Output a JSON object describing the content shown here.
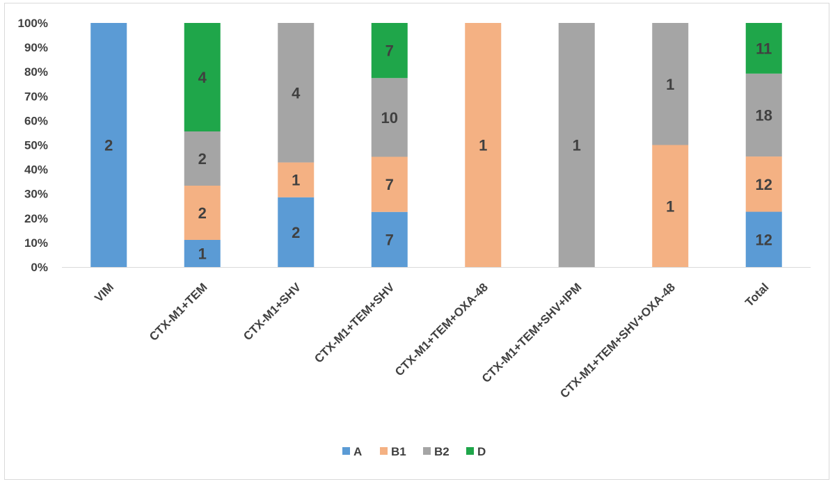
{
  "chart_data": {
    "type": "bar",
    "stacked": true,
    "percent": true,
    "title": "",
    "xlabel": "",
    "ylabel": "",
    "ylim": [
      0,
      100
    ],
    "y_ticks": [
      "0%",
      "10%",
      "20%",
      "30%",
      "40%",
      "50%",
      "60%",
      "70%",
      "80%",
      "90%",
      "100%"
    ],
    "grid": false,
    "legend_position": "bottom",
    "categories": [
      "VIM",
      "CTX-M1+TEM",
      "CTX-M1+SHV",
      "CTX-M1+TEM+SHV",
      "CTX-M1+TEM+OXA-48",
      "CTX-M1+TEM+SHV+IPM",
      "CTX-M1+TEM+SHV+OXA-48",
      "Total"
    ],
    "series": [
      {
        "name": "A",
        "color": "#5b9bd5",
        "values": [
          2,
          1,
          2,
          7,
          0,
          0,
          0,
          12
        ]
      },
      {
        "name": "B1",
        "color": "#f4b183",
        "values": [
          0,
          2,
          1,
          7,
          1,
          0,
          1,
          12
        ]
      },
      {
        "name": "B2",
        "color": "#a5a5a5",
        "values": [
          0,
          2,
          4,
          10,
          0,
          1,
          1,
          18
        ]
      },
      {
        "name": "D",
        "color": "#1fa64a",
        "values": [
          0,
          4,
          0,
          7,
          0,
          0,
          0,
          11
        ]
      }
    ]
  }
}
